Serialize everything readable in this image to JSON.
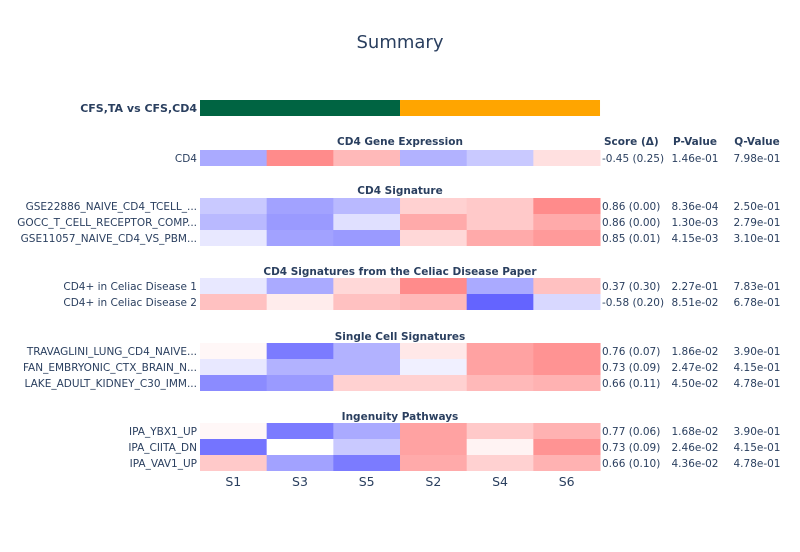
{
  "title": "Summary",
  "chart_data": {
    "type": "heatmap",
    "title": "Summary",
    "comparison": {
      "label": "CFS,TA vs CFS,CD4",
      "groups": [
        {
          "color": "#006442",
          "samples": [
            "S1",
            "S3",
            "S5"
          ]
        },
        {
          "color": "#FFA500",
          "samples": [
            "S2",
            "S4",
            "S6"
          ]
        }
      ]
    },
    "columns": [
      "S1",
      "S3",
      "S5",
      "S2",
      "S4",
      "S6"
    ],
    "stat_headers": {
      "score": "Score (Δ)",
      "pvalue": "P-Value",
      "qvalue": "Q-Value"
    },
    "colorscale": {
      "low": "#6464ff",
      "mid": "#ffffff",
      "high": "#ff6464"
    },
    "sections": [
      {
        "title": "CD4 Gene Expression",
        "rows": [
          {
            "label": "CD4",
            "values": [
              -0.55,
              0.75,
              0.45,
              -0.5,
              -0.35,
              0.2
            ],
            "score": "-0.45 (0.25)",
            "pvalue": "1.46e-01",
            "qvalue": "7.98e-01"
          }
        ]
      },
      {
        "title": "CD4 Signature",
        "rows": [
          {
            "label": "GSE22886_NAIVE_CD4_TCELL_...",
            "values": [
              -0.35,
              -0.6,
              -0.45,
              0.3,
              0.35,
              0.75
            ],
            "score": "0.86 (0.00)",
            "pvalue": "8.36e-04",
            "qvalue": "2.50e-01"
          },
          {
            "label": "GOCC_T_CELL_RECEPTOR_COMP...",
            "values": [
              -0.45,
              -0.65,
              -0.2,
              0.55,
              0.35,
              0.55
            ],
            "score": "0.86 (0.00)",
            "pvalue": "1.30e-03",
            "qvalue": "2.79e-01"
          },
          {
            "label": "GSE11057_NAIVE_CD4_VS_PBM...",
            "values": [
              -0.15,
              -0.6,
              -0.65,
              0.25,
              0.55,
              0.65
            ],
            "score": "0.85 (0.01)",
            "pvalue": "4.15e-03",
            "qvalue": "3.10e-01"
          }
        ]
      },
      {
        "title": "CD4 Signatures from the Celiac Disease Paper",
        "rows": [
          {
            "label": "CD4+ in Celiac Disease 1",
            "values": [
              -0.15,
              -0.55,
              0.25,
              0.75,
              -0.55,
              0.4
            ],
            "score": "0.37 (0.30)",
            "pvalue": "2.27e-01",
            "qvalue": "7.83e-01"
          },
          {
            "label": "CD4+ in Celiac Disease 2",
            "values": [
              0.4,
              0.12,
              0.4,
              0.45,
              -1.0,
              -0.25
            ],
            "score": "-0.58 (0.20)",
            "pvalue": "8.51e-02",
            "qvalue": "6.78e-01"
          }
        ]
      },
      {
        "title": "Single Cell Signatures",
        "rows": [
          {
            "label": "TRAVAGLINI_LUNG_CD4_NAIVE...",
            "values": [
              0.05,
              -0.85,
              -0.5,
              0.15,
              0.6,
              0.7
            ],
            "score": "0.76 (0.07)",
            "pvalue": "1.86e-02",
            "qvalue": "3.90e-01"
          },
          {
            "label": "FAN_EMBRYONIC_CTX_BRAIN_N...",
            "values": [
              -0.15,
              -0.5,
              -0.5,
              -0.1,
              0.6,
              0.7
            ],
            "score": "0.73 (0.09)",
            "pvalue": "2.47e-02",
            "qvalue": "4.15e-01"
          },
          {
            "label": "LAKE_ADULT_KIDNEY_C30_IMM...",
            "values": [
              -0.75,
              -0.65,
              0.3,
              0.3,
              0.45,
              0.5
            ],
            "score": "0.66 (0.11)",
            "pvalue": "4.50e-02",
            "qvalue": "4.78e-01"
          }
        ]
      },
      {
        "title": "Ingenuity Pathways",
        "rows": [
          {
            "label": "IPA_YBX1_UP",
            "values": [
              0.05,
              -0.85,
              -0.55,
              0.6,
              0.35,
              0.5
            ],
            "score": "0.77 (0.06)",
            "pvalue": "1.68e-02",
            "qvalue": "3.90e-01"
          },
          {
            "label": "IPA_CIITA_DN",
            "values": [
              -0.9,
              0.0,
              -0.35,
              0.6,
              0.08,
              0.7
            ],
            "score": "0.73 (0.09)",
            "pvalue": "2.46e-02",
            "qvalue": "4.15e-01"
          },
          {
            "label": "IPA_VAV1_UP",
            "values": [
              0.35,
              -0.6,
              -0.85,
              0.55,
              0.3,
              0.5
            ],
            "score": "0.66 (0.10)",
            "pvalue": "4.36e-02",
            "qvalue": "4.78e-01"
          }
        ]
      }
    ]
  }
}
